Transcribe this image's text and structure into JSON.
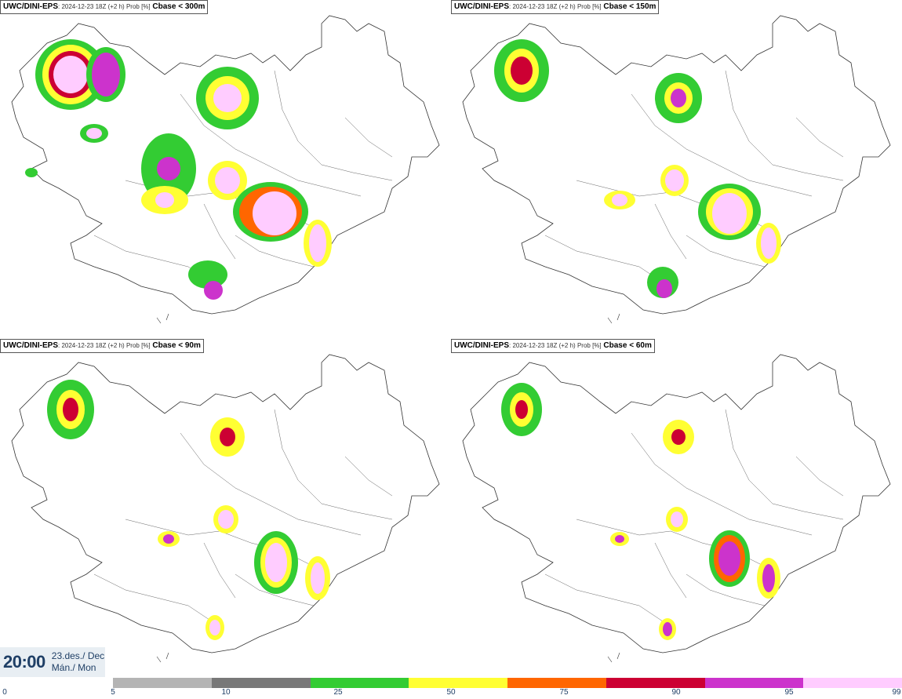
{
  "panels": [
    {
      "model": "UWC/DINI-EPS",
      "meta": ": 2024-12-23 18Z (+2 h) Prob [%]",
      "variable": "Cbase < 300m"
    },
    {
      "model": "UWC/DINI-EPS",
      "meta": ": 2024-12-23 18Z (+2 h) Prob [%]",
      "variable": "Cbase < 150m"
    },
    {
      "model": "UWC/DINI-EPS",
      "meta": ": 2024-12-23 18Z (+2 h) Prob [%]",
      "variable": "Cbase < 90m"
    },
    {
      "model": "UWC/DINI-EPS",
      "meta": ": 2024-12-23 18Z (+2 h) Prob [%]",
      "variable": "Cbase < 60m"
    }
  ],
  "valid_time": {
    "time": "20:00",
    "date_line1": "23.des./ Dec",
    "date_line2": "Mán./ Mon"
  },
  "colorbar": {
    "ticks": [
      "0",
      "5",
      "10",
      "25",
      "50",
      "75",
      "90",
      "95",
      "99"
    ],
    "colors": [
      "#ffffff",
      "#b4b4b4",
      "#787878",
      "#33cc33",
      "#ffff33",
      "#ff6600",
      "#cc0033",
      "#cc33cc",
      "#ffccff"
    ]
  }
}
